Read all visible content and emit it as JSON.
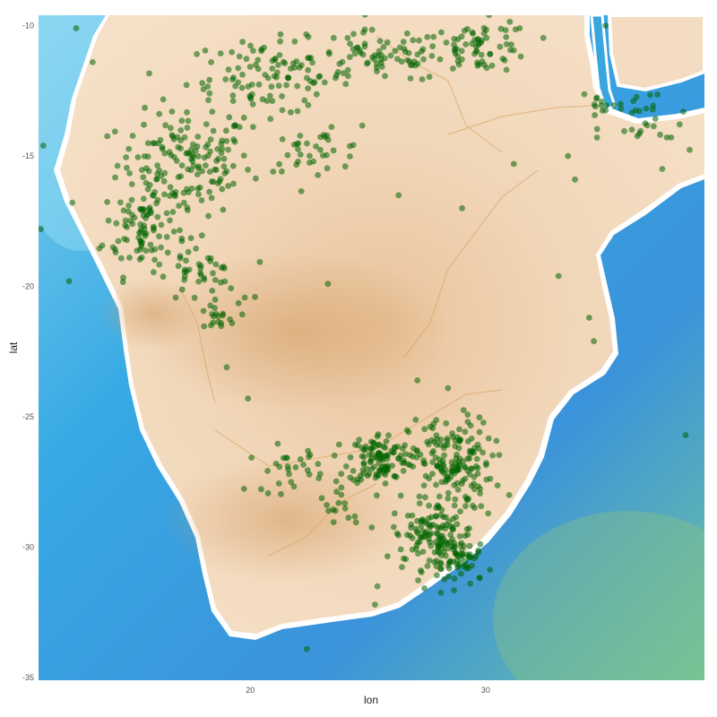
{
  "chart_data": {
    "type": "scatter",
    "xlabel": "lon",
    "ylabel": "lat",
    "xlim": [
      11.0,
      39.3
    ],
    "ylim": [
      -35.1,
      -9.6
    ],
    "x_ticks": [
      20,
      30
    ],
    "x_tick_labels": [
      "20",
      "30"
    ],
    "y_ticks": [
      -10,
      -15,
      -20,
      -25,
      -30,
      -35
    ],
    "y_tick_labels": [
      "-10",
      "-15",
      "-20",
      "-25",
      "-30",
      "-35"
    ],
    "grid": false,
    "legend": "none",
    "basemap": "watercolor map of southern Africa",
    "point_color": "#006400",
    "clusters": [
      {
        "lon": 17.2,
        "lat": -15.3,
        "spread_lon": 2.6,
        "spread_lat": 1.8,
        "points": 150
      },
      {
        "lon": 15.5,
        "lat": -17.8,
        "spread_lon": 1.6,
        "spread_lat": 1.6,
        "points": 90
      },
      {
        "lon": 20.8,
        "lat": -12.0,
        "spread_lon": 3.2,
        "spread_lat": 1.3,
        "points": 110
      },
      {
        "lon": 25.5,
        "lat": -11.2,
        "spread_lon": 2.6,
        "spread_lat": 0.9,
        "points": 70
      },
      {
        "lon": 29.8,
        "lat": -10.8,
        "spread_lon": 2.0,
        "spread_lat": 0.9,
        "points": 70
      },
      {
        "lon": 22.8,
        "lat": -14.8,
        "spread_lon": 2.0,
        "spread_lat": 0.7,
        "points": 35
      },
      {
        "lon": 17.8,
        "lat": -19.5,
        "spread_lon": 1.5,
        "spread_lat": 1.0,
        "points": 40
      },
      {
        "lon": 18.5,
        "lat": -21.2,
        "spread_lon": 0.9,
        "spread_lat": 0.5,
        "points": 18
      },
      {
        "lon": 36.8,
        "lat": -14.0,
        "spread_lon": 1.8,
        "spread_lat": 1.5,
        "points": 30
      },
      {
        "lon": 34.8,
        "lat": -13.0,
        "spread_lon": 1.0,
        "spread_lat": 0.8,
        "points": 12
      },
      {
        "lon": 25.5,
        "lat": -26.6,
        "spread_lon": 1.2,
        "spread_lat": 0.9,
        "points": 110
      },
      {
        "lon": 28.5,
        "lat": -26.8,
        "spread_lon": 1.6,
        "spread_lat": 1.6,
        "points": 160
      },
      {
        "lon": 27.8,
        "lat": -29.5,
        "spread_lon": 1.6,
        "spread_lat": 1.2,
        "points": 130
      },
      {
        "lon": 29.0,
        "lat": -30.5,
        "spread_lon": 1.2,
        "spread_lat": 0.8,
        "points": 60
      },
      {
        "lon": 21.5,
        "lat": -27.0,
        "spread_lon": 1.5,
        "spread_lat": 0.8,
        "points": 30
      },
      {
        "lon": 24.0,
        "lat": -28.5,
        "spread_lon": 1.0,
        "spread_lat": 0.6,
        "points": 15
      }
    ],
    "outliers": [
      {
        "lon": 12.6,
        "lat": -10.1
      },
      {
        "lon": 11.2,
        "lat": -14.6
      },
      {
        "lon": 11.1,
        "lat": -17.8
      },
      {
        "lon": 12.3,
        "lat": -19.8
      },
      {
        "lon": 13.3,
        "lat": -11.4
      },
      {
        "lon": 20.2,
        "lat": -20.4
      },
      {
        "lon": 23.3,
        "lat": -19.9
      },
      {
        "lon": 27.1,
        "lat": -23.6
      },
      {
        "lon": 28.4,
        "lat": -23.9
      },
      {
        "lon": 26.3,
        "lat": -16.5
      },
      {
        "lon": 29.0,
        "lat": -17.0
      },
      {
        "lon": 31.2,
        "lat": -15.3
      },
      {
        "lon": 33.5,
        "lat": -15.0
      },
      {
        "lon": 33.1,
        "lat": -19.6
      },
      {
        "lon": 34.4,
        "lat": -21.2
      },
      {
        "lon": 34.6,
        "lat": -22.1
      },
      {
        "lon": 38.5,
        "lat": -25.7
      },
      {
        "lon": 33.8,
        "lat": -15.9
      },
      {
        "lon": 35.1,
        "lat": -10.0
      },
      {
        "lon": 22.4,
        "lat": -33.9
      },
      {
        "lon": 25.4,
        "lat": -31.5
      },
      {
        "lon": 31.0,
        "lat": -28.0
      },
      {
        "lon": 19.9,
        "lat": -24.3
      },
      {
        "lon": 19.0,
        "lat": -23.1
      },
      {
        "lon": 25.3,
        "lat": -32.2
      }
    ]
  }
}
